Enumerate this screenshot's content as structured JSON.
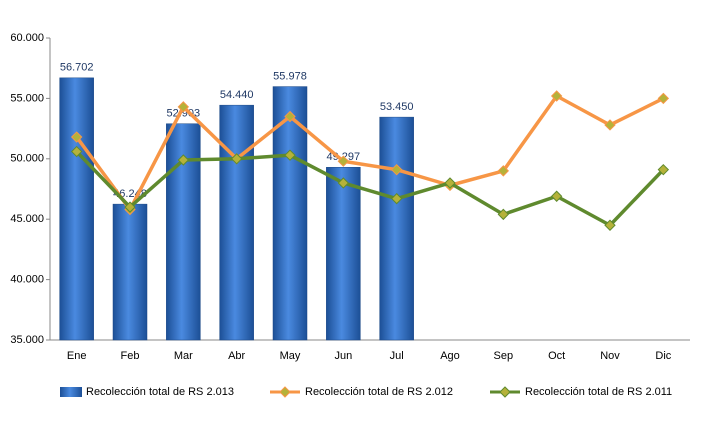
{
  "chart_data": {
    "type": "bar",
    "categories": [
      "Ene",
      "Feb",
      "Mar",
      "Abr",
      "May",
      "Jun",
      "Jul",
      "Ago",
      "Sep",
      "Oct",
      "Nov",
      "Dic"
    ],
    "series": [
      {
        "name": "Recolección total de RS 2.013",
        "type": "bar",
        "color": "#2e6bc0",
        "values": [
          56702,
          46248,
          52903,
          54440,
          55978,
          49297,
          53450,
          null,
          null,
          null,
          null,
          null
        ],
        "value_labels": [
          "56.702",
          "46.248",
          "52.903",
          "54.440",
          "55.978",
          "49.297",
          "53.450",
          null,
          null,
          null,
          null,
          null
        ]
      },
      {
        "name": "Recolección total de RS 2.012",
        "type": "line",
        "color": "#f79646",
        "values": [
          51800,
          45800,
          54300,
          50000,
          53500,
          49800,
          49100,
          47800,
          49000,
          55200,
          52800,
          55000
        ]
      },
      {
        "name": "Recolección total de RS 2.011",
        "type": "line",
        "color": "#5f8a2e",
        "values": [
          50600,
          46000,
          49900,
          50000,
          50300,
          48000,
          46700,
          48000,
          45400,
          46900,
          44500,
          49100
        ]
      }
    ],
    "ylim": [
      35000,
      60000
    ],
    "yticks": [
      {
        "value": 35000,
        "label": "35.000"
      },
      {
        "value": 40000,
        "label": "40.000"
      },
      {
        "value": 45000,
        "label": "45.000"
      },
      {
        "value": 50000,
        "label": "50.000"
      },
      {
        "value": 55000,
        "label": "55.000"
      },
      {
        "value": 60000,
        "label": "60.000"
      }
    ],
    "grid": false,
    "legend": "bottom"
  }
}
